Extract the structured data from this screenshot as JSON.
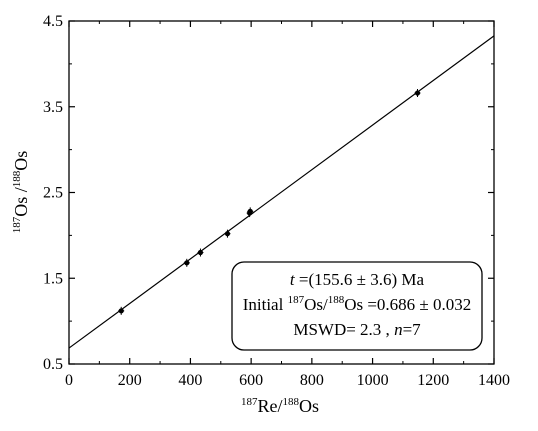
{
  "chart_data": {
    "type": "scatter",
    "x_axis": {
      "min": 0,
      "max": 1400,
      "ticks": [
        "0",
        "200",
        "400",
        "600",
        "800",
        "1000",
        "1200",
        "1400"
      ],
      "label": {
        "sup1": "187",
        "main1": "Re/",
        "sup2": "188",
        "main2": "Os"
      }
    },
    "y_axis": {
      "min": 0.5,
      "max": 4.5,
      "ticks": [
        "0.5",
        "1.5",
        "2.5",
        "3.5",
        "4.5"
      ],
      "label": {
        "sup1": "187",
        "main1": "Os /",
        "sup2": "188",
        "main2": "Os"
      }
    },
    "points": [
      {
        "x": 172,
        "y": 1.12
      },
      {
        "x": 388,
        "y": 1.68
      },
      {
        "x": 433,
        "y": 1.8
      },
      {
        "x": 522,
        "y": 2.02
      },
      {
        "x": 595,
        "y": 2.26
      },
      {
        "x": 597,
        "y": 2.28
      },
      {
        "x": 1148,
        "y": 3.66
      }
    ],
    "fit_line": {
      "intercept": 0.686,
      "slope": 0.0026
    },
    "annotation": {
      "line1": {
        "italic": "t",
        "rest": " =(155.6 ± 3.6) Ma"
      },
      "line2": {
        "prefix": "Initial ",
        "sup1": "187",
        "mid": "Os/",
        "sup2": "188",
        "rest": "Os =0.686 ± 0.032"
      },
      "line3": {
        "prefix": "MSWD= 2.3 , ",
        "italic": "n",
        "rest": "=7"
      }
    }
  }
}
